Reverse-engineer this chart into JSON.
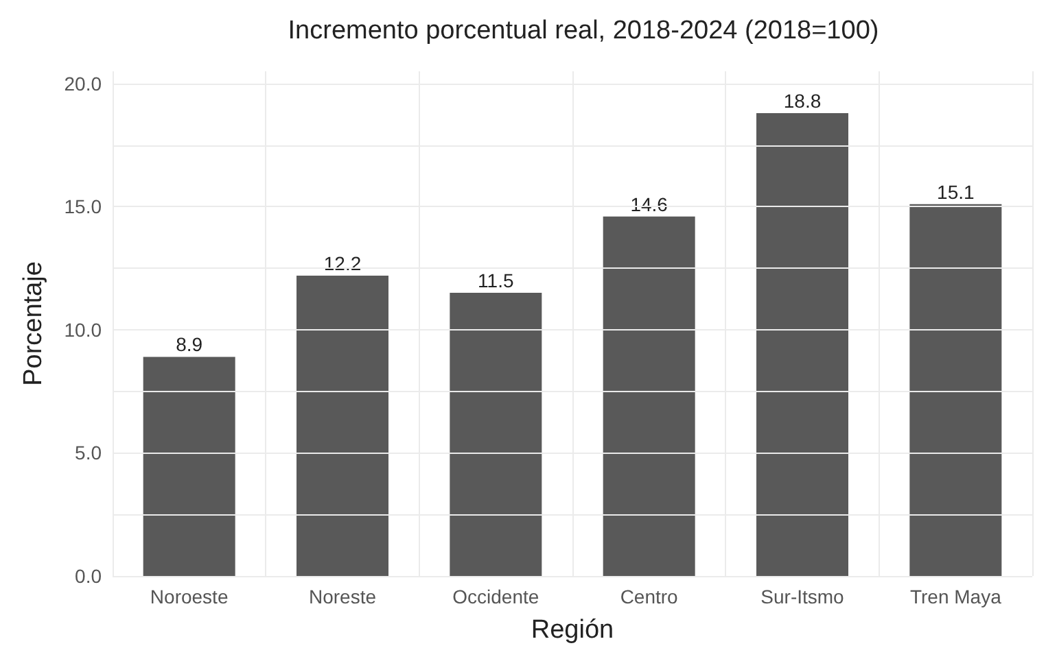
{
  "chart_data": {
    "type": "bar",
    "title": "Incremento porcentual real, 2018-2024 (2018=100)",
    "xlabel": "Región",
    "ylabel": "Porcentaje",
    "categories": [
      "Noroeste",
      "Noreste",
      "Occidente",
      "Centro",
      "Sur-Itsmo",
      "Tren Maya"
    ],
    "values": [
      8.9,
      12.2,
      11.5,
      14.6,
      18.8,
      15.1
    ],
    "color": "#595959",
    "ylim": [
      0,
      20.5
    ],
    "yticks": [
      {
        "value": 0,
        "label": "0.0"
      },
      {
        "value": 2.5,
        "label": null
      },
      {
        "value": 5,
        "label": "5.0"
      },
      {
        "value": 7.5,
        "label": null
      },
      {
        "value": 10,
        "label": "10.0"
      },
      {
        "value": 12.5,
        "label": null
      },
      {
        "value": 15,
        "label": "15.0"
      },
      {
        "value": 17.5,
        "label": null
      },
      {
        "value": 20,
        "label": "20.0"
      }
    ],
    "grid": true,
    "data_labels": true
  }
}
